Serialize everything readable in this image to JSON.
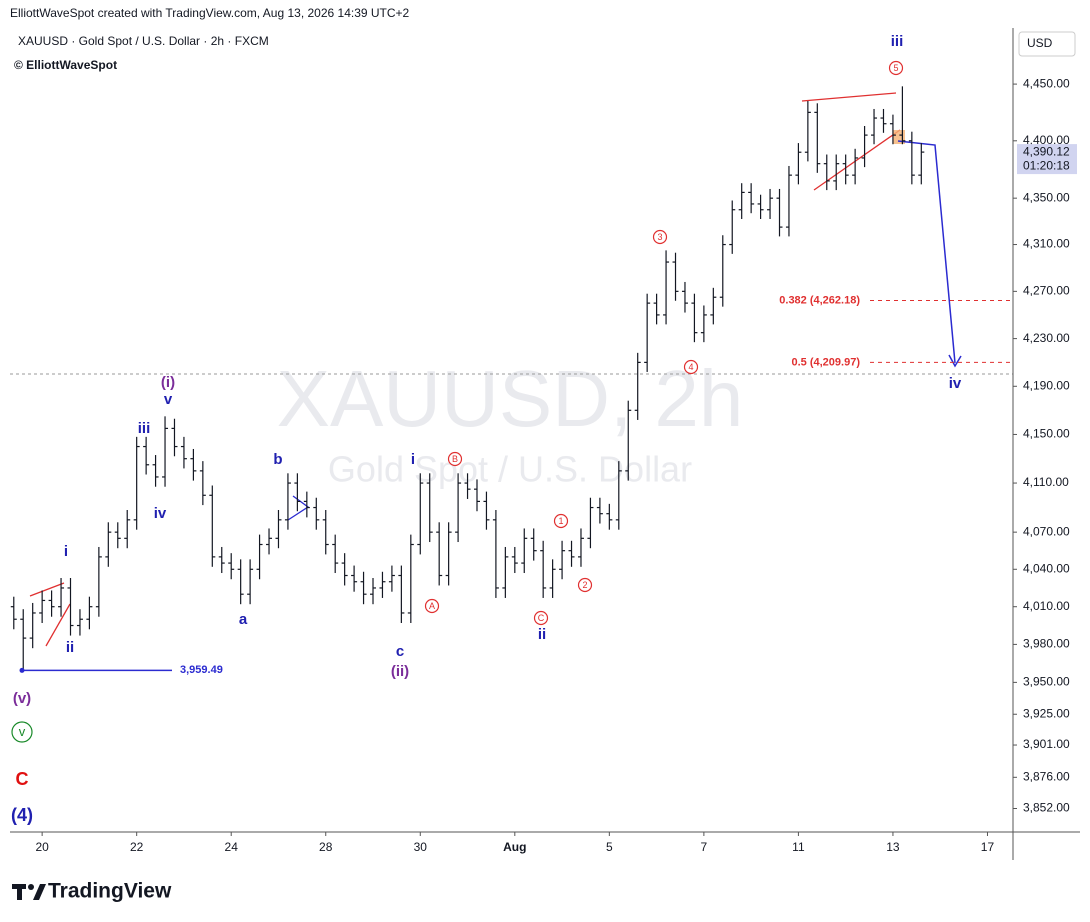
{
  "chart_data": {
    "type": "ohlc",
    "header": "ElliottWaveSpot created with TradingView.com, Aug 13, 2026 14:39 UTC+2",
    "title": "XAUUSD · Gold Spot / U.S. Dollar · 2h · FXCM",
    "author": "© ElliottWaveSpot",
    "watermark": [
      "XAUUSD, 2h",
      "Gold Spot / U.S. Dollar"
    ],
    "currency": "USD",
    "brand": "TradingView",
    "color": "#131722",
    "log_scale": true,
    "grid": false,
    "x": [
      -3,
      -2,
      -1,
      0,
      1,
      2,
      3,
      4,
      5,
      6,
      7,
      8,
      9,
      10,
      11,
      12,
      13,
      14,
      15,
      16,
      17,
      18,
      19,
      20,
      21,
      22,
      23,
      24,
      25,
      26,
      27,
      28,
      29,
      30,
      31,
      32,
      33,
      34,
      35,
      36,
      37,
      38,
      39,
      40,
      41,
      42,
      43,
      44,
      45,
      46,
      47,
      48,
      49,
      50,
      51,
      52,
      53,
      54,
      55,
      56,
      57,
      58,
      59,
      60,
      61,
      62,
      63,
      64,
      65,
      66,
      67,
      68,
      69,
      70,
      71,
      72,
      73,
      74,
      75,
      76,
      77,
      78,
      79,
      80,
      81,
      82,
      83,
      84,
      85,
      86,
      87,
      88,
      89,
      90,
      91,
      92,
      93
    ],
    "open": [
      4010,
      4000,
      3985,
      4005,
      4015,
      4010,
      4025,
      3995,
      4000,
      4010,
      4050,
      4070,
      4065,
      4080,
      4140,
      4125,
      4115,
      4155,
      4140,
      4130,
      4120,
      4100,
      4050,
      4045,
      4040,
      4020,
      4040,
      4060,
      4065,
      4080,
      4110,
      4095,
      4090,
      4080,
      4060,
      4045,
      4035,
      4030,
      4020,
      4025,
      4030,
      4035,
      4005,
      4060,
      4110,
      4070,
      4035,
      4070,
      4110,
      4105,
      4095,
      4080,
      4025,
      4050,
      4045,
      4065,
      4055,
      4025,
      4040,
      4055,
      4050,
      4065,
      4090,
      4085,
      4080,
      4120,
      4170,
      4210,
      4260,
      4250,
      4295,
      4270,
      4260,
      4235,
      4250,
      4265,
      4310,
      4340,
      4355,
      4345,
      4340,
      4350,
      4325,
      4370,
      4390,
      4425,
      4380,
      4365,
      4380,
      4370,
      4385,
      4405,
      4420,
      4415,
      4405,
      4400,
      4370
    ],
    "high": [
      4018,
      4008,
      4013,
      4023,
      4023,
      4033,
      4033,
      4008,
      4018,
      4058,
      4078,
      4078,
      4088,
      4148,
      4148,
      4133,
      4165,
      4163,
      4148,
      4138,
      4128,
      4108,
      4058,
      4053,
      4048,
      4048,
      4068,
      4073,
      4088,
      4118,
      4118,
      4103,
      4098,
      4088,
      4068,
      4053,
      4043,
      4038,
      4033,
      4038,
      4043,
      4043,
      4068,
      4118,
      4118,
      4078,
      4078,
      4118,
      4118,
      4113,
      4103,
      4088,
      4058,
      4058,
      4073,
      4073,
      4063,
      4048,
      4063,
      4063,
      4073,
      4098,
      4098,
      4093,
      4128,
      4178,
      4218,
      4268,
      4268,
      4305,
      4303,
      4278,
      4268,
      4258,
      4273,
      4318,
      4348,
      4363,
      4363,
      4353,
      4358,
      4358,
      4378,
      4398,
      4435,
      4433,
      4388,
      4388,
      4388,
      4393,
      4413,
      4428,
      4428,
      4423,
      4448,
      4408,
      4398
    ],
    "low": [
      3992,
      3959.49,
      3977,
      3997,
      4002,
      4002,
      3987,
      3987,
      3992,
      4002,
      4042,
      4057,
      4057,
      4072,
      4117,
      4107,
      4107,
      4132,
      4122,
      4112,
      4092,
      4042,
      4037,
      4032,
      4012,
      4012,
      4032,
      4052,
      4057,
      4072,
      4087,
      4082,
      4072,
      4052,
      4037,
      4027,
      4022,
      4012,
      4012,
      4017,
      4022,
      3997,
      3997,
      4052,
      4062,
      4027,
      4027,
      4062,
      4097,
      4087,
      4072,
      4017,
      4017,
      4037,
      4037,
      4047,
      4017,
      4017,
      4032,
      4042,
      4042,
      4057,
      4077,
      4072,
      4072,
      4112,
      4162,
      4202,
      4242,
      4242,
      4262,
      4252,
      4227,
      4227,
      4242,
      4257,
      4302,
      4332,
      4337,
      4332,
      4332,
      4317,
      4317,
      4362,
      4382,
      4372,
      4357,
      4357,
      4362,
      4362,
      4377,
      4397,
      4407,
      4397,
      4397,
      4362,
      4362
    ],
    "close": [
      4000,
      3985,
      4005,
      4015,
      4010,
      4025,
      3995,
      4000,
      4010,
      4050,
      4070,
      4065,
      4080,
      4140,
      4125,
      4115,
      4155,
      4140,
      4130,
      4120,
      4100,
      4050,
      4045,
      4040,
      4020,
      4040,
      4060,
      4065,
      4080,
      4110,
      4095,
      4090,
      4080,
      4060,
      4045,
      4035,
      4030,
      4020,
      4025,
      4030,
      4035,
      4005,
      4060,
      4110,
      4070,
      4035,
      4070,
      4110,
      4105,
      4095,
      4080,
      4025,
      4050,
      4045,
      4065,
      4055,
      4025,
      4040,
      4055,
      4050,
      4065,
      4090,
      4085,
      4080,
      4120,
      4170,
      4210,
      4260,
      4250,
      4295,
      4270,
      4260,
      4235,
      4250,
      4265,
      4310,
      4340,
      4355,
      4345,
      4340,
      4350,
      4325,
      4370,
      4390,
      4425,
      4380,
      4365,
      4380,
      4370,
      4385,
      4405,
      4420,
      4415,
      4405,
      4400,
      4370,
      4390.12
    ],
    "last_price_label": "4,390.12",
    "countdown": "01:20:18",
    "xlim": [
      -3.4,
      102.7
    ],
    "xticks": [
      {
        "value": 0,
        "label": "20"
      },
      {
        "value": 10,
        "label": "22"
      },
      {
        "value": 20,
        "label": "24"
      },
      {
        "value": 30,
        "label": "28"
      },
      {
        "value": 40,
        "label": "30"
      },
      {
        "value": 50,
        "label": "Aug"
      },
      {
        "value": 60,
        "label": "5"
      },
      {
        "value": 70,
        "label": "7"
      },
      {
        "value": 80,
        "label": "11"
      },
      {
        "value": 90,
        "label": "13"
      },
      {
        "value": 100,
        "label": "17"
      }
    ],
    "ylim": [
      3834,
      4500
    ],
    "yticks": [
      {
        "value": 4450,
        "label": "4,450.00"
      },
      {
        "value": 4400,
        "label": "4,400.00"
      },
      {
        "value": 4350,
        "label": "4,350.00"
      },
      {
        "value": 4310,
        "label": "4,310.00"
      },
      {
        "value": 4270,
        "label": "4,270.00"
      },
      {
        "value": 4230,
        "label": "4,230.00"
      },
      {
        "value": 4190,
        "label": "4,190.00"
      },
      {
        "value": 4150,
        "label": "4,150.00"
      },
      {
        "value": 4110,
        "label": "4,110.00"
      },
      {
        "value": 4070,
        "label": "4,070.00"
      },
      {
        "value": 4040,
        "label": "4,040.00"
      },
      {
        "value": 4010,
        "label": "4,010.00"
      },
      {
        "value": 3980,
        "label": "3,980.00"
      },
      {
        "value": 3950,
        "label": "3,950.00"
      },
      {
        "value": 3925,
        "label": "3,925.00"
      },
      {
        "value": 3901,
        "label": "3,901.00"
      },
      {
        "value": 3876,
        "label": "3,876.00"
      },
      {
        "value": 3852,
        "label": "3,852.00"
      }
    ],
    "levels": [
      {
        "value": 3959.49,
        "label": "3,959.49",
        "color": "#2b2bd0"
      },
      {
        "value": 4262.18,
        "label": "0.382 (4,262.18)",
        "color": "#e03030"
      },
      {
        "value": 4209.97,
        "label": "0.5 (4,209.97)",
        "color": "#e03030"
      }
    ],
    "annotations": [
      {
        "text": "(i)",
        "color": "#7b2d9a"
      },
      {
        "text": "v",
        "color": "#2020b0"
      },
      {
        "text": "iii",
        "color": "#2020b0"
      },
      {
        "text": "iv",
        "color": "#2020b0"
      },
      {
        "text": "i",
        "color": "#2020b0"
      },
      {
        "text": "ii",
        "color": "#2020b0"
      },
      {
        "text": "(v)",
        "color": "#7b2d9a"
      },
      {
        "text": "v",
        "color": "#1a8a2a",
        "circled": true
      },
      {
        "text": "C",
        "color": "#e01010"
      },
      {
        "text": "(4)",
        "color": "#2020b0"
      },
      {
        "text": "a",
        "color": "#2020b0"
      },
      {
        "text": "b",
        "color": "#2020b0"
      },
      {
        "text": "c",
        "color": "#2020b0"
      },
      {
        "text": "(ii)",
        "color": "#7b2d9a"
      },
      {
        "text": "i",
        "color": "#2020b0"
      },
      {
        "text": "A",
        "color": "#e03030",
        "circled": true
      },
      {
        "text": "B",
        "color": "#e03030",
        "circled": true
      },
      {
        "text": "C",
        "color": "#e03030",
        "circled": true
      },
      {
        "text": "ii",
        "color": "#2020b0"
      },
      {
        "text": "1",
        "color": "#e03030",
        "circled": true
      },
      {
        "text": "2",
        "color": "#e03030",
        "circled": true
      },
      {
        "text": "3",
        "color": "#e03030",
        "circled": true
      },
      {
        "text": "4",
        "color": "#e03030",
        "circled": true
      },
      {
        "text": "5",
        "color": "#e03030",
        "circled": true
      },
      {
        "text": "iii",
        "color": "#2020b0"
      },
      {
        "text": "iv",
        "color": "#2020b0"
      }
    ]
  }
}
